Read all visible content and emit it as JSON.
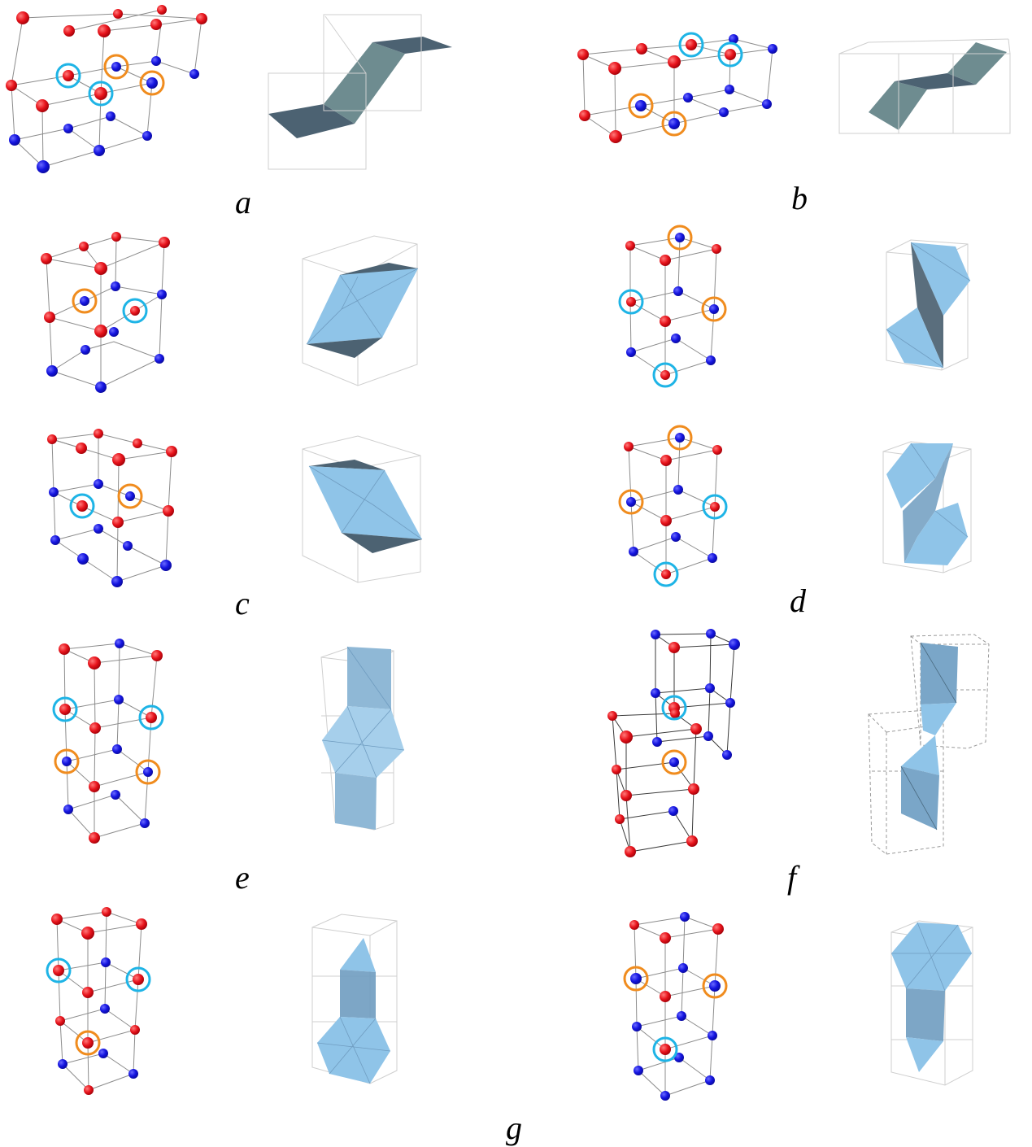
{
  "panels": [
    {
      "id": "a",
      "label": "a"
    },
    {
      "id": "b",
      "label": "b"
    },
    {
      "id": "c",
      "label": "c"
    },
    {
      "id": "d",
      "label": "d"
    },
    {
      "id": "e",
      "label": "e"
    },
    {
      "id": "f",
      "label": "f"
    },
    {
      "id": "g",
      "label": "g"
    }
  ],
  "colors": {
    "atom_red": "#e8141c",
    "atom_blue": "#1414e0",
    "ring_cyan": "#1eb4e6",
    "ring_orange": "#f08c1e",
    "surface_dark": "#4c6272",
    "surface_slate": "#6e8c90",
    "surface_light": "#8fc4e8",
    "surface_mid": "#6f9cc0"
  }
}
